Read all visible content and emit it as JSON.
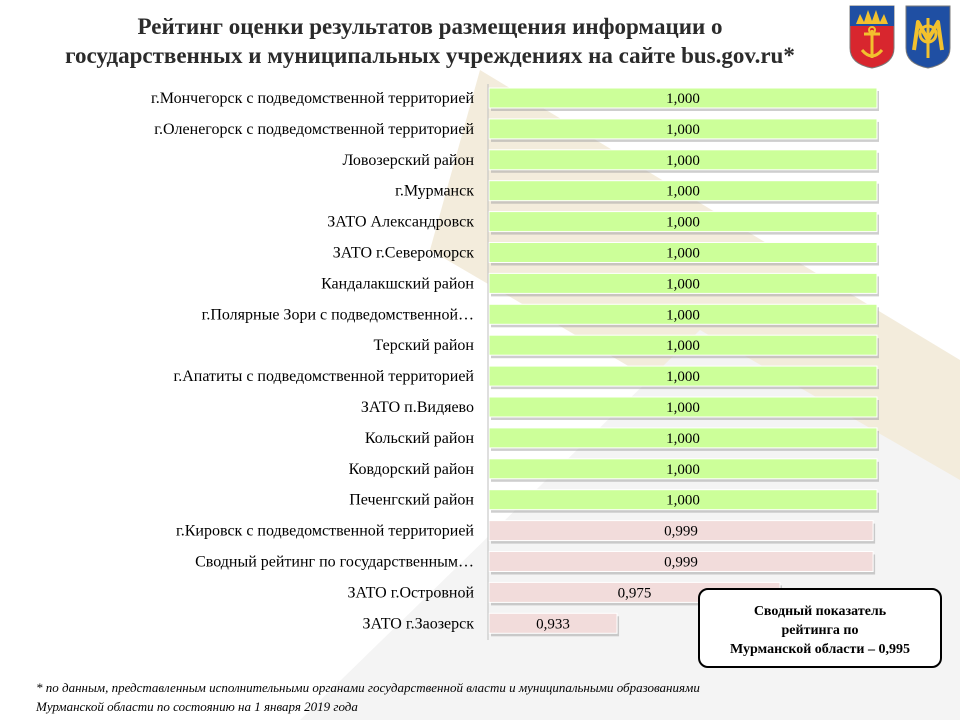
{
  "title": {
    "line1": "Рейтинг оценки результатов  размещения  информации о",
    "line2": "государственных и муниципальных учреждениях на сайте bus.gov.ru*"
  },
  "summary": {
    "line1": "Сводный показатель",
    "line2": "рейтинга по",
    "line3": "Мурманской области – 0,995"
  },
  "footnote": {
    "line1": "* по данным, представленным исполнительными органами государственной власти и  муниципальными образованиями",
    "line2": "Мурманской области по состоянию на 1 января 2019 года"
  },
  "emblems": [
    {
      "name": "murmansk-oblast-coat-of-arms",
      "colors": [
        "#1f4fa3",
        "#d8262e",
        "#f2c12e"
      ]
    },
    {
      "name": "ministry-of-finance-logo",
      "colors": [
        "#1f4fa3",
        "#f2c12e",
        "#d8262e"
      ]
    }
  ],
  "colors": {
    "bar_full": "#ccff99",
    "bar_partial": "#f2dcdb",
    "bar_stroke": "#ffffff",
    "bar_shadow": "#a6a6a6",
    "axis": "#bfbfbf",
    "decor_gold": "#e8dcc0",
    "decor_grey": "#ededed"
  },
  "chart_data": {
    "type": "bar",
    "orientation": "horizontal",
    "categories": [
      "г.Мончегорск с подведомственной территорией",
      "г.Оленегорск с подведомственной территорией",
      "Ловозерский район",
      "г.Мурманск",
      "ЗАТО Александровск",
      "ЗАТО г.Североморск",
      "Кандалакшский район",
      "г.Полярные Зори с подведомственной…",
      "Терский район",
      "г.Апатиты с подведомственной территорией",
      "ЗАТО п.Видяево",
      "Кольский район",
      "Ковдорский район",
      "Печенгский район",
      "г.Кировск с подведомственной территорией",
      "Сводный рейтинг по государственным…",
      "ЗАТО г.Островной",
      "ЗАТО г.Заозерск"
    ],
    "values": [
      1.0,
      1.0,
      1.0,
      1.0,
      1.0,
      1.0,
      1.0,
      1.0,
      1.0,
      1.0,
      1.0,
      1.0,
      1.0,
      1.0,
      0.999,
      0.999,
      0.975,
      0.933
    ],
    "value_labels": [
      "1,000",
      "1,000",
      "1,000",
      "1,000",
      "1,000",
      "1,000",
      "1,000",
      "1,000",
      "1,000",
      "1,000",
      "1,000",
      "1,000",
      "1,000",
      "1,000",
      "0,999",
      "0,999",
      "0,975",
      "0,933"
    ],
    "xlim": [
      0.9,
      1.0
    ],
    "grid": false,
    "legend": "none"
  }
}
